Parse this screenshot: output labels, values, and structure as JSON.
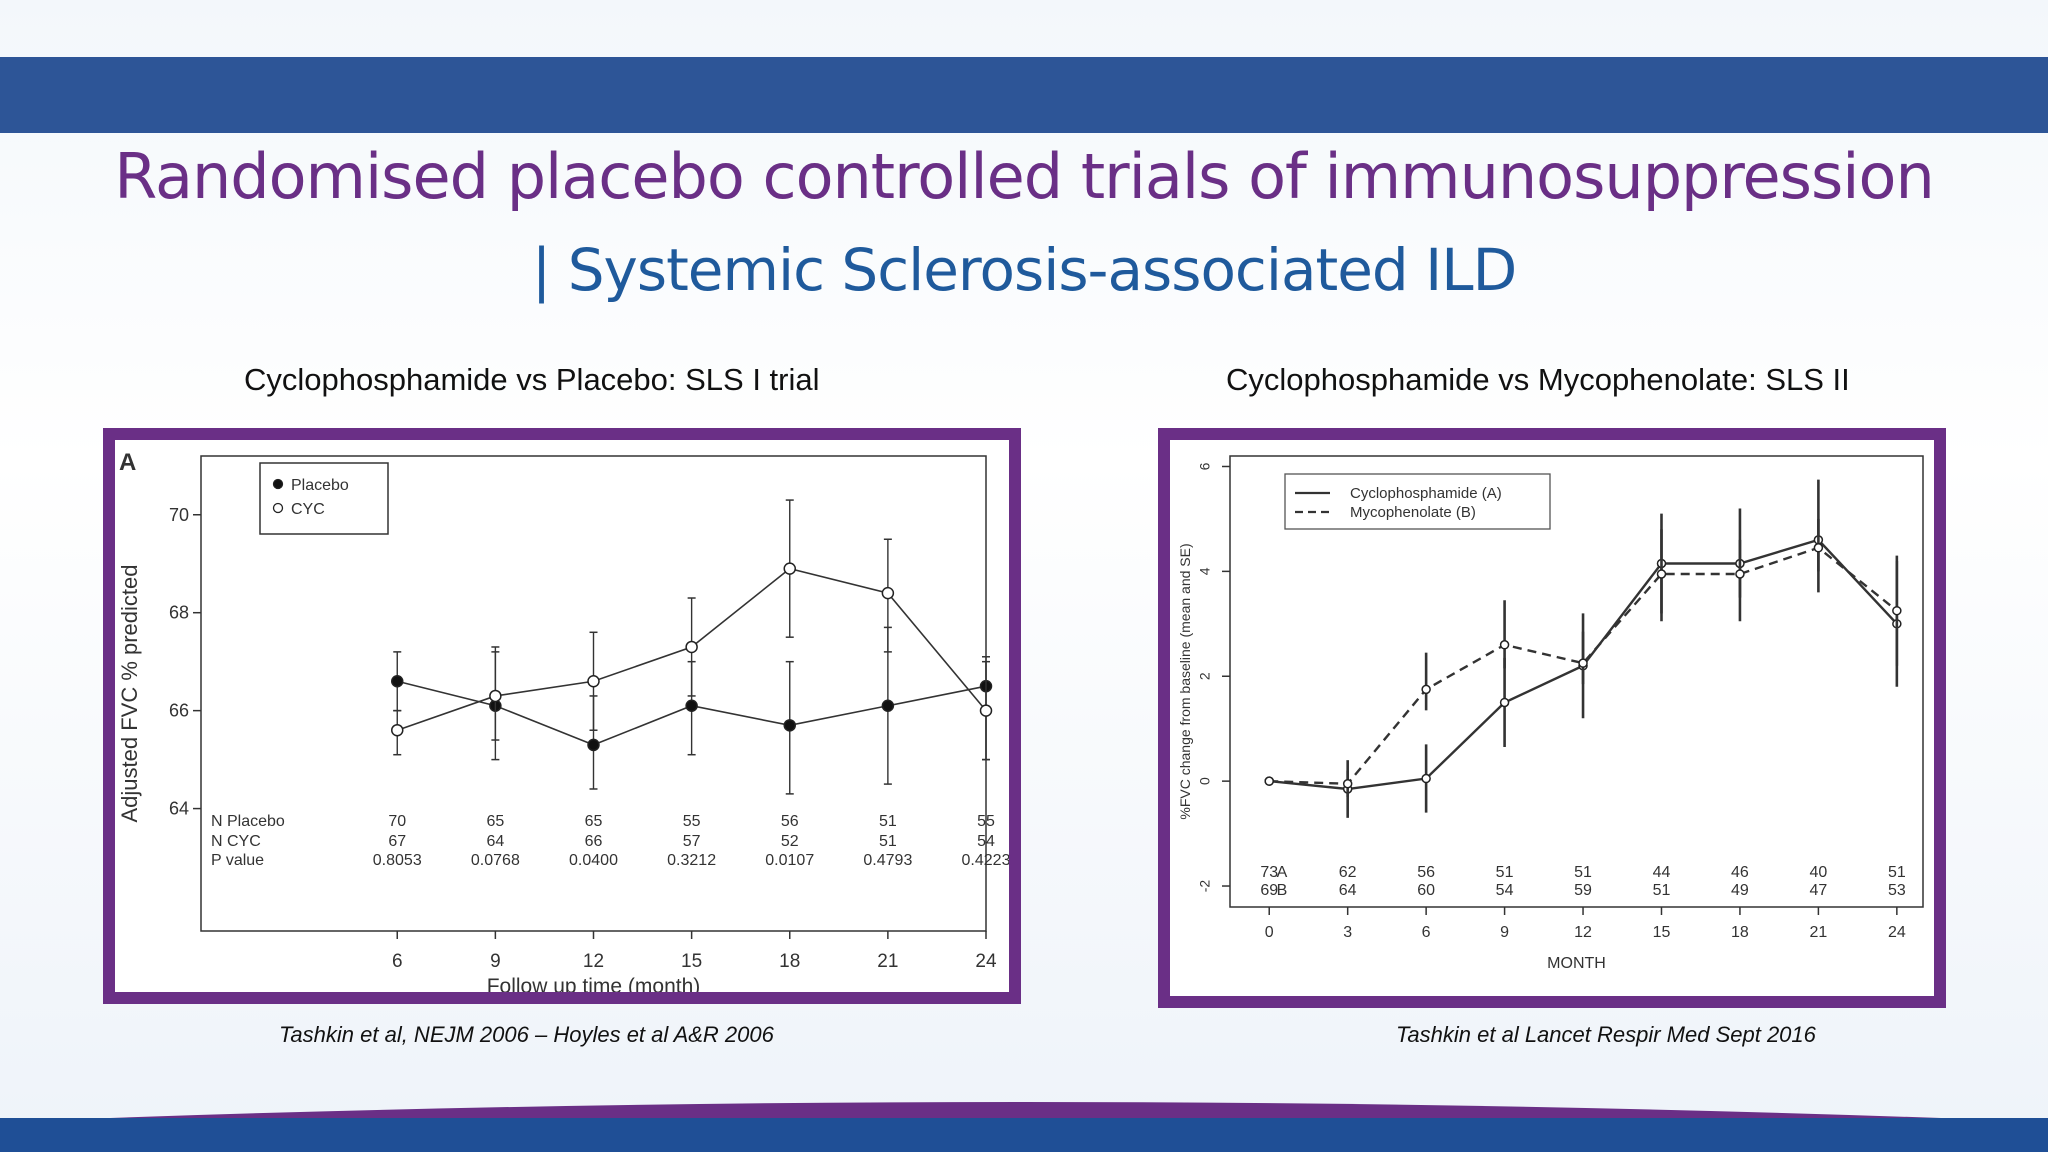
{
  "slide": {
    "title_line1": "Randomised placebo controlled trials of immunosuppression",
    "title_line2": "| Systemic Sclerosis-associated ILD",
    "colors": {
      "band": "#2d5597",
      "title": "#6a2f86",
      "subtitle": "#1f5a9c",
      "frame": "#6a2f86"
    },
    "left_heading": "Cyclophosphamide vs Placebo: SLS I trial",
    "right_heading": "Cyclophosphamide vs Mycophenolate: SLS II",
    "left_citation": "Tashkin et al, NEJM  2006 – Hoyles et al A&R 2006",
    "right_citation": "Tashkin et al Lancet Respir Med Sept 2016"
  },
  "chart_data": [
    {
      "type": "line",
      "panel_label": "A",
      "xlabel": "Follow up time (month)",
      "ylabel": "Adjusted FVC % predicted",
      "x": [
        6,
        9,
        12,
        15,
        18,
        21,
        24
      ],
      "xlim": [
        0,
        24
      ],
      "ylim": [
        61.5,
        71.2
      ],
      "yticks": [
        64,
        66,
        68,
        70
      ],
      "legend": "top-left",
      "series": [
        {
          "name": "Placebo",
          "marker": "filled",
          "values": [
            66.6,
            66.1,
            65.3,
            66.1,
            65.7,
            66.1,
            66.5
          ],
          "err_low": [
            66.0,
            65.0,
            64.4,
            65.1,
            64.3,
            64.5,
            65.0
          ],
          "err_high": [
            67.2,
            67.2,
            66.3,
            67.0,
            67.0,
            67.7,
            67.0
          ]
        },
        {
          "name": "CYC",
          "marker": "open",
          "values": [
            65.6,
            66.3,
            66.6,
            67.3,
            68.9,
            68.4,
            66.0
          ],
          "err_low": [
            65.1,
            65.4,
            65.6,
            66.3,
            67.5,
            67.2,
            65.0
          ],
          "err_high": [
            66.0,
            67.3,
            67.6,
            68.3,
            70.3,
            69.5,
            67.1
          ]
        }
      ],
      "table": {
        "row_labels": [
          "N Placebo",
          "N CYC",
          "P value"
        ],
        "rows": [
          [
            "70",
            "65",
            "65",
            "55",
            "56",
            "51",
            "55"
          ],
          [
            "67",
            "64",
            "66",
            "57",
            "52",
            "51",
            "54"
          ],
          [
            "0.8053",
            "0.0768",
            "0.0400",
            "0.3212",
            "0.0107",
            "0.4793",
            "0.4223"
          ]
        ]
      }
    },
    {
      "type": "line",
      "xlabel": "MONTH",
      "ylabel": "%FVC change from baseline (mean and SE)",
      "x": [
        0,
        3,
        6,
        9,
        12,
        15,
        18,
        21,
        24
      ],
      "xlim": [
        -1.5,
        25
      ],
      "ylim": [
        -2.4,
        6.2
      ],
      "yticks": [
        -2,
        0,
        2,
        4,
        6
      ],
      "legend": "top-left",
      "series": [
        {
          "name": "Cyclophosphamide (A)",
          "line": "solid",
          "values": [
            0.0,
            -0.15,
            0.05,
            1.5,
            2.2,
            4.15,
            4.15,
            4.6,
            3.0
          ],
          "err_low": [
            0.0,
            -0.7,
            -0.6,
            0.65,
            1.2,
            3.2,
            3.05,
            3.6,
            1.8
          ],
          "err_high": [
            0.0,
            0.4,
            0.7,
            2.35,
            3.2,
            5.1,
            5.2,
            5.75,
            4.2
          ]
        },
        {
          "name": "Mycophenolate (B)",
          "line": "dashed",
          "values": [
            0.0,
            -0.05,
            1.75,
            2.6,
            2.25,
            3.95,
            3.95,
            4.45,
            3.25
          ],
          "err_low": [
            0.0,
            -0.3,
            1.35,
            2.15,
            1.85,
            3.05,
            3.5,
            4.0,
            2.2
          ],
          "err_high": [
            0.0,
            0.2,
            2.45,
            3.45,
            2.85,
            4.8,
            4.6,
            5.0,
            4.3
          ]
        }
      ],
      "table": {
        "row_labels": [
          "A",
          "B"
        ],
        "rows": [
          [
            "73",
            "62",
            "56",
            "51",
            "51",
            "44",
            "46",
            "40",
            "51"
          ],
          [
            "69",
            "64",
            "60",
            "54",
            "59",
            "51",
            "49",
            "47",
            "53"
          ]
        ]
      }
    }
  ]
}
